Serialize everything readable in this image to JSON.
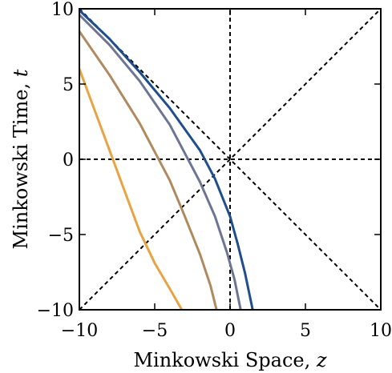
{
  "chart_data": {
    "type": "line",
    "xlabel_text": "Minkowski Space, ",
    "xlabel_var": "z",
    "ylabel_text": "Minkowski Time, ",
    "ylabel_var": "t",
    "xlim": [
      -10,
      10
    ],
    "ylim": [
      -10,
      10
    ],
    "x_ticks": [
      -10,
      -5,
      0,
      5,
      10
    ],
    "y_ticks": [
      -10,
      -5,
      0,
      5,
      10
    ],
    "x_tick_labels": [
      "−10",
      "−5",
      "0",
      "5",
      "10"
    ],
    "y_tick_labels": [
      "−10",
      "−5",
      "0",
      "5",
      "10"
    ],
    "grid": false,
    "reference_lines": [
      {
        "name": "t = 0",
        "points": [
          [
            -10,
            0
          ],
          [
            10,
            0
          ]
        ],
        "color": "#000000",
        "dashed": true
      },
      {
        "name": "z = 0",
        "points": [
          [
            0,
            -10
          ],
          [
            0,
            10
          ]
        ],
        "color": "#000000",
        "dashed": true
      },
      {
        "name": "t = z",
        "points": [
          [
            -10,
            -10
          ],
          [
            10,
            10
          ]
        ],
        "color": "#000000",
        "dashed": true
      },
      {
        "name": "t = -z",
        "points": [
          [
            -10,
            10
          ],
          [
            10,
            -10
          ]
        ],
        "color": "#000000",
        "dashed": true
      }
    ],
    "series": [
      {
        "color": "#1f4e8c",
        "points": [
          [
            -10,
            9.9
          ],
          [
            -8,
            8.0
          ],
          [
            -6,
            5.8
          ],
          [
            -4,
            3.4
          ],
          [
            -2,
            0.6
          ],
          [
            -1,
            -1.3
          ],
          [
            0,
            -3.8
          ],
          [
            0.5,
            -5.6
          ],
          [
            1.0,
            -7.6
          ],
          [
            1.5,
            -10
          ]
        ]
      },
      {
        "color": "#6e7494",
        "points": [
          [
            -10,
            9.6
          ],
          [
            -8,
            7.6
          ],
          [
            -6,
            5.2
          ],
          [
            -4,
            2.3
          ],
          [
            -2,
            -1.5
          ],
          [
            -1,
            -3.8
          ],
          [
            -0.2,
            -6.2
          ],
          [
            0.3,
            -8.0
          ],
          [
            0.7,
            -10
          ]
        ]
      },
      {
        "color": "#b08a5f",
        "points": [
          [
            -10,
            8.5
          ],
          [
            -8,
            5.6
          ],
          [
            -6,
            2.4
          ],
          [
            -4,
            -1.4
          ],
          [
            -3,
            -3.8
          ],
          [
            -2,
            -6.3
          ],
          [
            -1.3,
            -8.4
          ],
          [
            -0.9,
            -10
          ]
        ]
      },
      {
        "color": "#e8a444",
        "points": [
          [
            -10,
            6.0
          ],
          [
            -9,
            3.3
          ],
          [
            -8,
            0.6
          ],
          [
            -7,
            -2.1
          ],
          [
            -6,
            -4.8
          ],
          [
            -5,
            -6.9
          ],
          [
            -4,
            -8.6
          ],
          [
            -3.2,
            -10
          ]
        ]
      }
    ]
  }
}
